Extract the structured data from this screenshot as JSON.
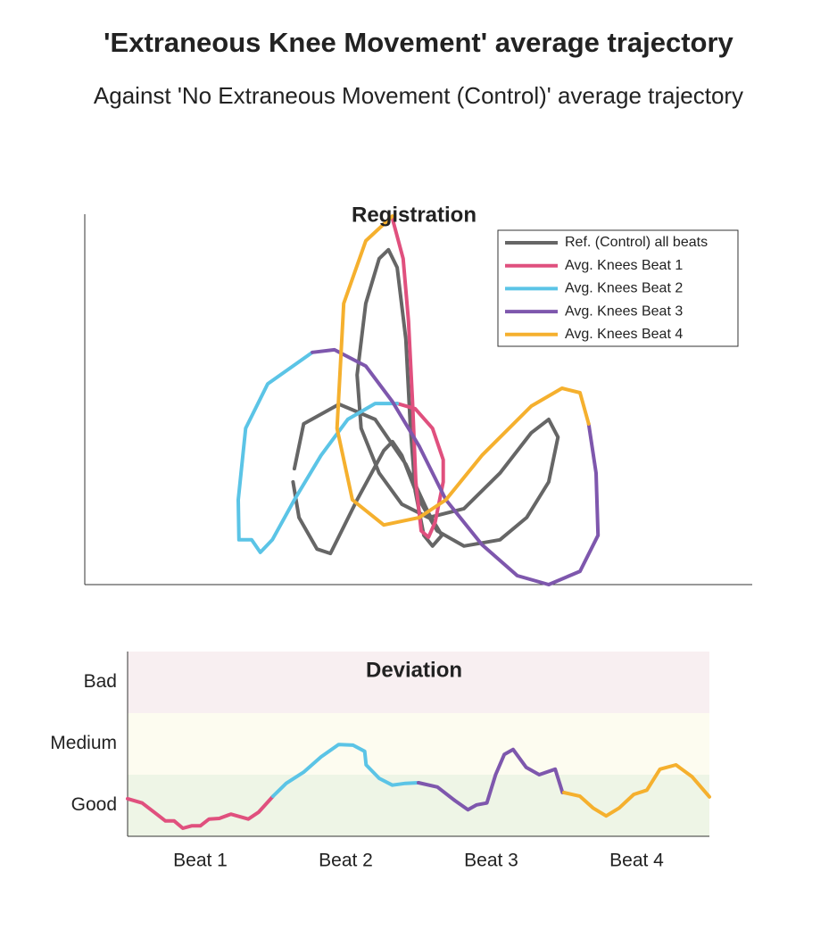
{
  "title": "'Extraneous Knee Movement' average trajectory",
  "subtitle": "Against 'No Extraneous Movement (Control)' average trajectory",
  "chart_data": [
    {
      "type": "line",
      "title": "Registration",
      "xlim": [
        0,
        100
      ],
      "ylim": [
        0,
        100
      ],
      "legend": "upper right",
      "series": [
        {
          "name": "Ref. (Control) all beats",
          "color": "#666666",
          "x": [
            31.4,
            32.8,
            38.1,
            43.5,
            48.1,
            51.5,
            53.5,
            52.1,
            50.8,
            49.5,
            48.8,
            48.1,
            46.8,
            45.5,
            44.1,
            42.1,
            40.8,
            41.4,
            44.1,
            47.5,
            51.5,
            56.8,
            62.2,
            66.9,
            69.5,
            70.9,
            69.5,
            66.2,
            62.2,
            56.8,
            52.8,
            50.1,
            47.5,
            46.1,
            44.8,
            40.8,
            36.8,
            34.8,
            32.1,
            31.2
          ],
          "values": [
            31.3,
            43.4,
            48.7,
            44.6,
            32.5,
            19.3,
            13.3,
            10.4,
            13.3,
            25.3,
            42.2,
            66.3,
            85.6,
            90.4,
            88.0,
            75.9,
            56.6,
            42.2,
            30.1,
            21.7,
            18.1,
            20.5,
            30.1,
            41.0,
            44.6,
            39.8,
            27.7,
            18.1,
            12.1,
            10.4,
            14.5,
            22.9,
            34.9,
            38.6,
            36.2,
            22.9,
            8.4,
            9.6,
            18.1,
            27.7
          ]
        },
        {
          "name": "Avg. Knees Beat 1",
          "color": "#e0507e",
          "x": [
            46.1,
            47.7,
            48.5,
            49.1,
            49.6,
            50.4,
            51.5,
            52.5,
            53.7,
            53.7,
            52.1,
            49.5,
            46.8
          ],
          "values": [
            98.8,
            88.0,
            71.1,
            49.4,
            27.7,
            14.5,
            12.8,
            16.9,
            27.7,
            33.7,
            42.2,
            47.5,
            48.9
          ]
        },
        {
          "name": "Avg. Knees Beat 2",
          "color": "#5bc4e6",
          "x": [
            46.8,
            43.5,
            39.4,
            35.4,
            31.4,
            28.1,
            26.3,
            25.0,
            23.1,
            23.0,
            24.1,
            27.4,
            34.1
          ],
          "values": [
            48.9,
            48.9,
            44.6,
            34.9,
            22.9,
            12.1,
            8.7,
            12.1,
            12.1,
            22.9,
            42.2,
            54.2,
            62.7
          ]
        },
        {
          "name": "Avg. Knees Beat 3",
          "color": "#7e57ad",
          "x": [
            34.1,
            37.4,
            42.1,
            46.1,
            50.1,
            54.1,
            59.5,
            64.8,
            69.5,
            74.2,
            76.9,
            76.6,
            75.5
          ],
          "values": [
            62.7,
            63.4,
            59.0,
            49.4,
            37.4,
            22.9,
            10.8,
            2.4,
            0.0,
            3.6,
            13.3,
            30.1,
            43.4
          ]
        },
        {
          "name": "Avg. Knees Beat 4",
          "color": "#f5b02e",
          "x": [
            75.5,
            74.2,
            71.5,
            66.9,
            59.5,
            54.1,
            50.1,
            44.8,
            40.1,
            37.8,
            38.8,
            42.1,
            46.1
          ],
          "values": [
            43.4,
            51.8,
            53.0,
            48.2,
            34.9,
            22.9,
            18.1,
            16.1,
            22.9,
            42.2,
            75.9,
            92.8,
            99.5
          ]
        }
      ]
    },
    {
      "type": "line",
      "title": "Deviation",
      "xlim": [
        0,
        4
      ],
      "ylim": [
        0,
        3
      ],
      "xticks": [
        {
          "value": 0.5,
          "label": "Beat 1"
        },
        {
          "value": 1.5,
          "label": "Beat 2"
        },
        {
          "value": 2.5,
          "label": "Beat 3"
        },
        {
          "value": 3.5,
          "label": "Beat 4"
        }
      ],
      "yticks": [
        {
          "value": 0.5,
          "label": "Good"
        },
        {
          "value": 1.5,
          "label": "Medium"
        },
        {
          "value": 2.5,
          "label": "Bad"
        }
      ],
      "bands": [
        {
          "from": 0,
          "to": 1,
          "color": "#eef5e6"
        },
        {
          "from": 1,
          "to": 2,
          "color": "#fdfcf0"
        },
        {
          "from": 2,
          "to": 3,
          "color": "#f8eff1"
        }
      ],
      "series": [
        {
          "color": "#e0507e",
          "x": [
            0,
            0.1,
            0.2,
            0.26,
            0.32,
            0.38,
            0.44,
            0.5,
            0.56,
            0.63,
            0.71,
            0.77,
            0.83,
            0.9,
            1.0
          ],
          "values": [
            0.61,
            0.54,
            0.36,
            0.25,
            0.25,
            0.13,
            0.17,
            0.17,
            0.28,
            0.29,
            0.36,
            0.32,
            0.28,
            0.39,
            0.65
          ]
        },
        {
          "color": "#5bc4e6",
          "x": [
            1.0,
            1.09,
            1.21,
            1.33,
            1.45,
            1.55,
            1.63,
            1.64,
            1.73,
            1.82,
            1.91,
            2.0
          ],
          "values": [
            0.65,
            0.86,
            1.04,
            1.29,
            1.49,
            1.48,
            1.38,
            1.16,
            0.94,
            0.83,
            0.86,
            0.87
          ]
        },
        {
          "color": "#7e57ad",
          "x": [
            2.0,
            2.13,
            2.25,
            2.34,
            2.4,
            2.47,
            2.53,
            2.59,
            2.65,
            2.74,
            2.83,
            2.94,
            2.99,
            3.0
          ],
          "values": [
            0.87,
            0.8,
            0.58,
            0.43,
            0.51,
            0.54,
            1.0,
            1.33,
            1.41,
            1.12,
            1.0,
            1.09,
            0.71,
            0.71
          ]
        },
        {
          "color": "#f5b02e",
          "x": [
            3.0,
            3.11,
            3.2,
            3.29,
            3.38,
            3.48,
            3.57,
            3.66,
            3.77,
            3.88,
            4.0
          ],
          "values": [
            0.71,
            0.65,
            0.46,
            0.33,
            0.46,
            0.68,
            0.75,
            1.09,
            1.16,
            0.97,
            0.64
          ]
        }
      ]
    }
  ]
}
